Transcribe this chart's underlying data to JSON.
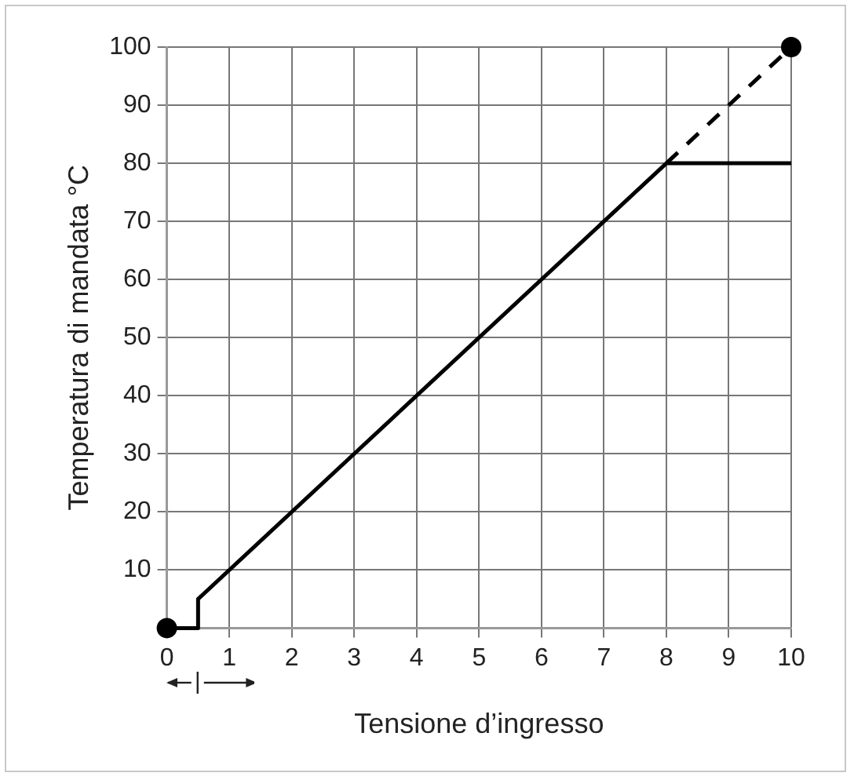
{
  "chart_data": {
    "type": "line",
    "xlabel": "Tensione d’ingresso",
    "ylabel": "Temperatura di mandata °C",
    "xlim": [
      0,
      10
    ],
    "xticks": [
      0,
      1,
      2,
      3,
      4,
      5,
      6,
      7,
      8,
      9,
      10
    ],
    "ylim": [
      0,
      100
    ],
    "yticks": [
      {
        "value": 0,
        "label": null
      },
      10,
      20,
      30,
      40,
      50,
      60,
      70,
      80,
      90,
      100
    ],
    "grid": true,
    "series": [
      {
        "color": "#000000",
        "x": [
          0,
          0.5,
          0.5,
          8,
          10
        ],
        "values": [
          0,
          0,
          5,
          80,
          80
        ],
        "line_style": "solid",
        "marker": "none"
      },
      {
        "color": "#000000",
        "x": [
          8,
          10
        ],
        "values": [
          80,
          100
        ],
        "line_style": "dashed",
        "marker": "none"
      },
      {
        "type": "scatter",
        "color": "#000000",
        "x": [
          0,
          10
        ],
        "values": [
          0,
          100
        ],
        "marker": "circle"
      }
    ]
  }
}
